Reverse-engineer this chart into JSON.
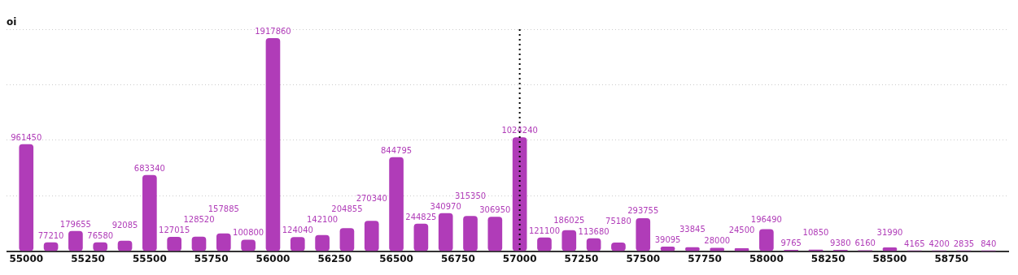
{
  "chart_data": {
    "type": "bar",
    "ylabel": "oi",
    "x": [
      55000,
      55100,
      55200,
      55300,
      55400,
      55500,
      55600,
      55700,
      55800,
      55900,
      56000,
      56100,
      56200,
      56300,
      56400,
      56500,
      56600,
      56700,
      56800,
      56900,
      57000,
      57100,
      57200,
      57300,
      57400,
      57500,
      57600,
      57700,
      57800,
      57900,
      58000,
      58100,
      58200,
      58300,
      58400,
      58500,
      58600,
      58700,
      58800,
      58900
    ],
    "series": [
      {
        "color": "#b03cb8",
        "values": [
          961450,
          77210,
          179655,
          76580,
          92085,
          683340,
          127015,
          128520,
          157885,
          100800,
          1917860,
          124040,
          142100,
          204855,
          270340,
          844795,
          244825,
          340970,
          315350,
          306950,
          1024240,
          121100,
          186025,
          113680,
          75180,
          293755,
          39095,
          33845,
          28000,
          24500,
          196490,
          9765,
          10850,
          9380,
          6160,
          31990,
          4165,
          4200,
          2835,
          840
        ]
      }
    ],
    "xlim": [
      54920,
      58980
    ],
    "xticks": [
      55000,
      55250,
      55500,
      55750,
      56000,
      56250,
      56500,
      56750,
      57000,
      57250,
      57500,
      57750,
      58000,
      58250,
      58500,
      58750
    ],
    "ylim": [
      0,
      2000000
    ],
    "yticks": [
      {
        "value": 0,
        "label": null
      },
      {
        "value": 500000,
        "label": null
      },
      {
        "value": 1000000,
        "label": null
      },
      {
        "value": 1500000,
        "label": null
      },
      {
        "value": 2000000,
        "label": null
      }
    ],
    "tick_labels": "x",
    "grid": "y",
    "legend": false,
    "data_labels": true,
    "ref_lines": [
      {
        "axis": "x",
        "value": 57000,
        "color": "#000000",
        "line_style": "dotted"
      }
    ]
  }
}
